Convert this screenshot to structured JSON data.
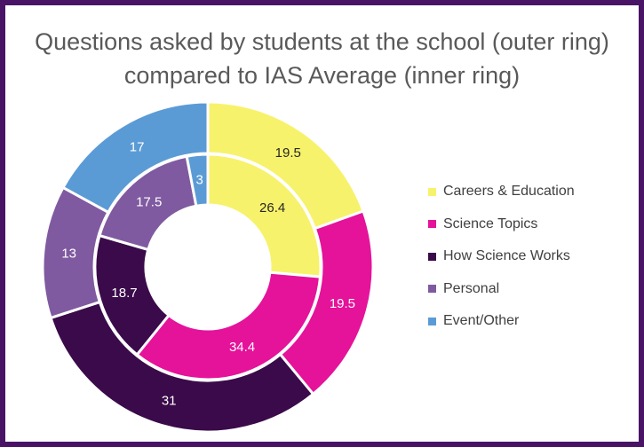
{
  "chart_data": {
    "type": "donut",
    "title": "Questions asked by students at the school (outer ring) compared to IAS Average (inner ring)",
    "title_lines": [
      "Questions asked by students at the school (outer ring)",
      "compared to IAS Average (inner ring)"
    ],
    "categories": [
      "Careers & Education",
      "Science Topics",
      "How Science Works",
      "Personal",
      "Event/Other"
    ],
    "colors": [
      "#f7f26b",
      "#e5129a",
      "#3a0a4a",
      "#7f5aa0",
      "#5b9bd5"
    ],
    "label_colors": [
      "#262626",
      "#ffffff",
      "#ffffff",
      "#ffffff",
      "#ffffff"
    ],
    "series": [
      {
        "ring": "outer",
        "values": [
          19.5,
          19.5,
          31,
          13,
          17
        ]
      },
      {
        "ring": "inner",
        "values": [
          26.4,
          34.4,
          18.7,
          17.5,
          3
        ]
      }
    ],
    "legend_position": "right",
    "border_color": "#4a1466"
  }
}
